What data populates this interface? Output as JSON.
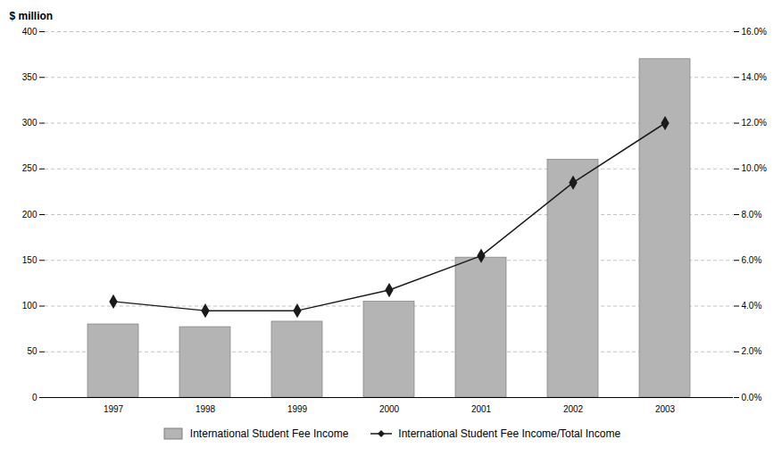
{
  "chart_data": {
    "type": "bar",
    "categories": [
      "1997",
      "1998",
      "1999",
      "2000",
      "2001",
      "2002",
      "2003"
    ],
    "series": [
      {
        "name": "International Student Fee Income",
        "type": "bar",
        "color": "#b4b4b4",
        "values": [
          80,
          77,
          83,
          105,
          153,
          260,
          370
        ]
      },
      {
        "name": "International Student Fee Income/Total Income",
        "type": "line",
        "color": "#1a1a1a",
        "marker": "diamond",
        "axis": "y2",
        "values": [
          4.2,
          3.8,
          3.8,
          4.7,
          6.2,
          9.4,
          12.0
        ]
      }
    ],
    "ylabel": "$ million",
    "ylim": [
      0,
      400
    ],
    "yticks": [
      0,
      50,
      100,
      150,
      200,
      250,
      300,
      350,
      400
    ],
    "y2lim": [
      0.0,
      16.0
    ],
    "y2ticks": [
      {
        "value": 0.0,
        "label": "0.0%"
      },
      {
        "value": 2.0,
        "label": "2.0%"
      },
      {
        "value": 4.0,
        "label": "4.0%"
      },
      {
        "value": 6.0,
        "label": "6.0%"
      },
      {
        "value": 8.0,
        "label": "8.0%"
      },
      {
        "value": 10.0,
        "label": "10.0%"
      },
      {
        "value": 12.0,
        "label": "12.0%"
      },
      {
        "value": 14.0,
        "label": "14.0%"
      },
      {
        "value": 16.0,
        "label": "16.0%"
      }
    ],
    "grid": true,
    "legend": "bottom"
  }
}
